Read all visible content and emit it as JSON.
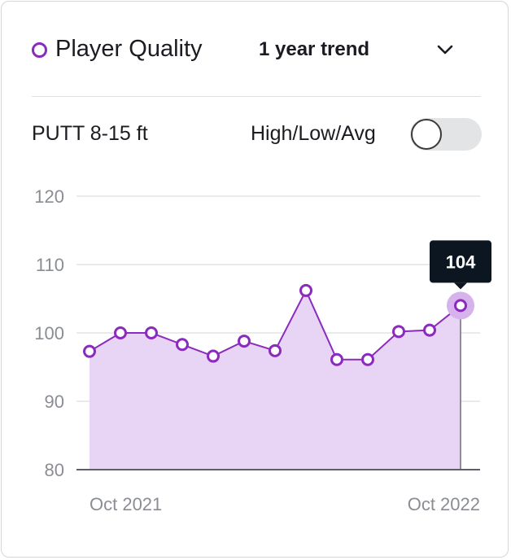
{
  "header": {
    "title": "Player Quality",
    "trend_select": "1 year trend",
    "icons": {
      "legend": "circle-marker-icon",
      "dropdown": "chevron-down-icon"
    }
  },
  "controls": {
    "metric_label": "PUTT 8-15 ft",
    "toggle_label": "High/Low/Avg",
    "toggle_on": false
  },
  "colors": {
    "series": "#8a2bbd",
    "fill": "#e8d4f4",
    "tooltip_bg": "#0c1620"
  },
  "chart_data": {
    "type": "area",
    "title": "",
    "xlabel": "",
    "ylabel": "",
    "x_tick_labels": [
      "Oct 2021",
      "Oct 2022"
    ],
    "y_ticks": [
      120,
      110,
      100,
      90,
      80
    ],
    "ylim": [
      80,
      120
    ],
    "grid": true,
    "series": [
      {
        "values": [
          97.3,
          100.0,
          100.0,
          98.3,
          96.6,
          98.8,
          97.4,
          106.2,
          96.1,
          96.1,
          100.2,
          100.4,
          104
        ]
      }
    ],
    "highlight": {
      "index": 12,
      "label": "104"
    }
  }
}
